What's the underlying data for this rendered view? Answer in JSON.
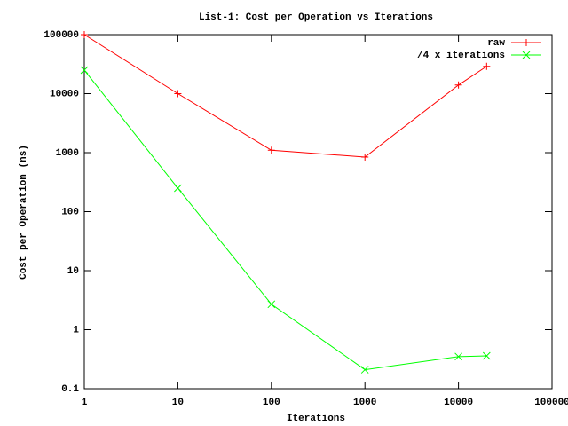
{
  "chart_data": {
    "type": "line",
    "title": "List-1: Cost per Operation vs Iterations",
    "xlabel": "Iterations",
    "ylabel": "Cost per Operation (ns)",
    "x": [
      1,
      10,
      100,
      1000,
      10000,
      20000
    ],
    "series": [
      {
        "name": "raw",
        "color": "#ff0000",
        "marker": "+",
        "values": [
          100000,
          10000,
          1100,
          840,
          14000,
          29000
        ]
      },
      {
        "name": "/4 x iterations",
        "color": "#00ff00",
        "marker": "x",
        "values": [
          25000,
          250,
          2.7,
          0.21,
          0.35,
          0.36
        ]
      }
    ],
    "xlim": [
      1,
      100000
    ],
    "ylim": [
      0.1,
      100000
    ],
    "xticks": [
      1,
      10,
      100,
      1000,
      10000,
      100000
    ],
    "yticks": [
      0.1,
      1,
      10,
      100,
      1000,
      10000,
      100000
    ],
    "xlog": true,
    "ylog": true,
    "legend": "top-right"
  }
}
